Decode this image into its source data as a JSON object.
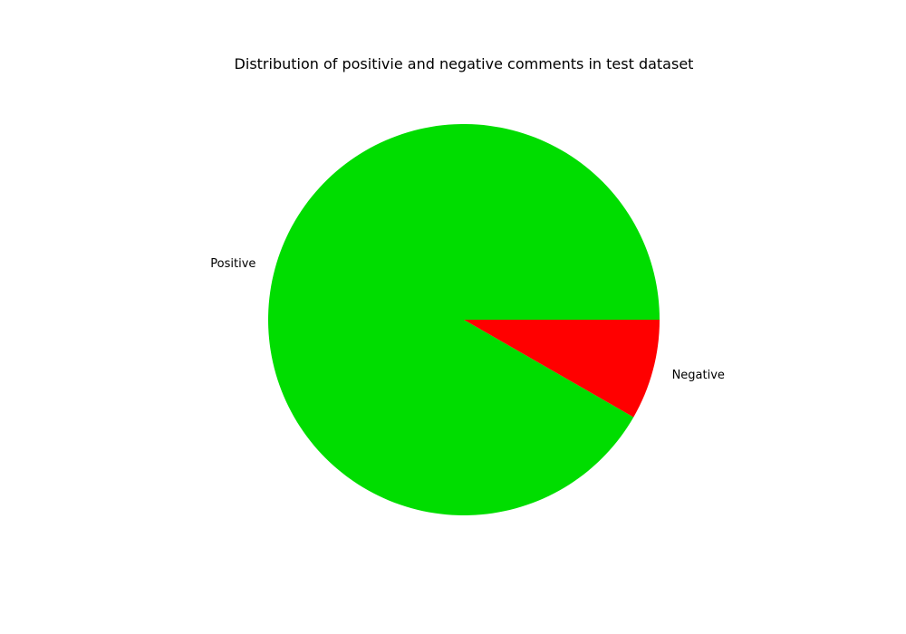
{
  "chart_data": {
    "type": "pie",
    "title": "Distribution of positivie and negative comments in test dataset",
    "start_angle_deg": 0,
    "direction": "counterclockwise",
    "labels": [
      "Positive",
      "Negative"
    ],
    "values": [
      91.7,
      8.3
    ],
    "colors": [
      "#00dd00",
      "#ff0000"
    ],
    "legend": "none"
  }
}
